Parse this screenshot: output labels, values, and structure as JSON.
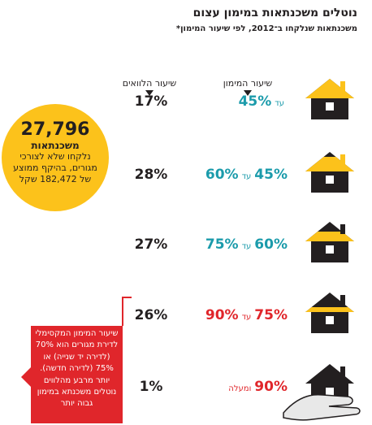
{
  "title": "נוטלים משכנתאות במימון עצום",
  "subtitle": "משכנתאות שנלקחו ב־2012, לפי שיעור המימון*",
  "chart_data": {
    "type": "table",
    "columns": {
      "financing": "שיעור המימון",
      "loan": "שיעור הלוואים"
    },
    "rows": [
      {
        "house_fill": 1.0,
        "from": "",
        "connector": "עד",
        "to": "45%",
        "loan_share": "17%",
        "color": "#1b9bab"
      },
      {
        "house_fill": 0.75,
        "from": "45%",
        "connector": "עד",
        "to": "60%",
        "loan_share": "28%",
        "color": "#1b9bab"
      },
      {
        "house_fill": 0.5,
        "from": "60%",
        "connector": "עד",
        "to": "75%",
        "loan_share": "27%",
        "color": "#1b9bab"
      },
      {
        "house_fill": 0.25,
        "from": "75%",
        "connector": "עד",
        "to": "90%",
        "loan_share": "26%",
        "color": "#e0262b"
      },
      {
        "house_fill": 0.0,
        "from": "90%",
        "connector": "ומעלה",
        "to": "",
        "loan_share": "1%",
        "color": "#e0262b"
      }
    ]
  },
  "callout": {
    "number": "27,796",
    "unit": "משכנתאות",
    "description": "נלקחו שלא לצורכי מגורים, בהיקף ממוצע של 182,472 שקל"
  },
  "note": "שיעור המימון המקסימלי לדירת מגורים הוא 70% (לדירה יד שנייה) או 75% (לדירה חדשה). יותר מרבע מהלווים נוטלים משכנתא במימון גבוה יותר",
  "colors": {
    "teal": "#1b9bab",
    "red": "#e0262b",
    "yellow": "#fcc21b",
    "dark": "#231f20"
  },
  "icons": [
    "house-icon",
    "hand-icon",
    "down-arrow-icon"
  ]
}
